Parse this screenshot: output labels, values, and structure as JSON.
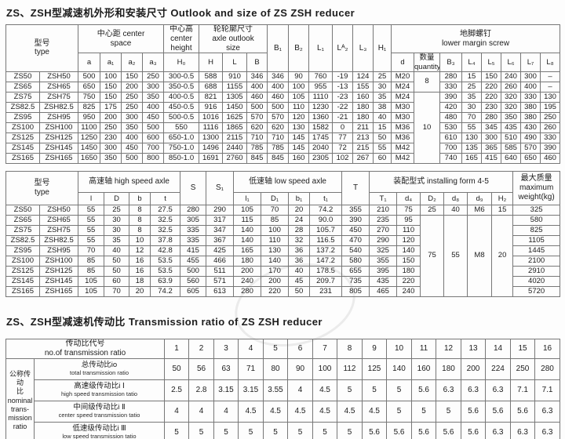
{
  "titles": {
    "size": "ZS、ZSH型减速机外形和安装尺寸  Outlook and size of ZS ZSH reducer",
    "ratio": "ZS、ZSH型减速机传动比  Transmission ratio of ZS ZSH reducer"
  },
  "size_table": {
    "header_rows": [
      [
        [
          "型号\ntype",
          2,
          2
        ],
        [
          "中心距 center\nspace",
          4,
          1
        ],
        [
          "中心高\ncenter\nheight",
          1,
          1
        ],
        [
          "轮轮廓尺寸\naxle outlook\nsize",
          3,
          1
        ],
        [
          "B₁",
          1,
          2
        ],
        [
          "B₂",
          1,
          2
        ],
        [
          "L₁",
          1,
          2
        ],
        [
          "Lᴬ₂",
          1,
          2
        ],
        [
          "L₃",
          1,
          2
        ],
        [
          "H₁",
          1,
          2
        ],
        [
          "地脚螺钉\nlower margin screw",
          8,
          1
        ]
      ],
      [
        [
          "a",
          1,
          1
        ],
        [
          "a₁",
          1,
          1
        ],
        [
          "a₂",
          1,
          1
        ],
        [
          "a₃",
          1,
          1
        ],
        [
          "H₀",
          1,
          1
        ],
        [
          "H",
          1,
          1
        ],
        [
          "L",
          1,
          1
        ],
        [
          "B",
          1,
          1
        ],
        [
          "d",
          1,
          1
        ],
        [
          "数量\nquantity",
          1,
          1
        ],
        [
          "B₃",
          1,
          1
        ],
        [
          "L₄",
          1,
          1
        ],
        [
          "L₅",
          1,
          1
        ],
        [
          "L₆",
          1,
          1
        ],
        [
          "L₇",
          1,
          1
        ],
        [
          "L₈",
          1,
          1
        ]
      ]
    ],
    "quantity_merges": [
      {
        "at": 0,
        "span": 2,
        "value": "8"
      },
      {
        "at": 2,
        "span": 7,
        "value": "10"
      }
    ],
    "rows": [
      [
        "ZS50",
        "ZSH50",
        "500",
        "100",
        "150",
        "250",
        "300-0.5",
        "588",
        "910",
        "346",
        "346",
        "90",
        "760",
        "-19",
        "124",
        "25",
        "M20",
        "280",
        "15",
        "150",
        "240",
        "300",
        "–"
      ],
      [
        "ZS65",
        "ZSH65",
        "650",
        "150",
        "200",
        "300",
        "350-0.5",
        "688",
        "1155",
        "400",
        "400",
        "100",
        "955",
        "-13",
        "155",
        "30",
        "M24",
        "330",
        "25",
        "220",
        "260",
        "400",
        "–"
      ],
      [
        "ZS75",
        "ZSH75",
        "750",
        "150",
        "250",
        "350",
        "400-0.5",
        "821",
        "1305",
        "460",
        "460",
        "105",
        "1110",
        "-23",
        "160",
        "35",
        "M24",
        "390",
        "35",
        "220",
        "320",
        "330",
        "130"
      ],
      [
        "ZS82.5",
        "ZSH82.5",
        "825",
        "175",
        "250",
        "400",
        "450-0.5",
        "916",
        "1450",
        "500",
        "500",
        "110",
        "1230",
        "-22",
        "180",
        "38",
        "M30",
        "420",
        "30",
        "230",
        "320",
        "380",
        "195"
      ],
      [
        "ZS95",
        "ZSH95",
        "950",
        "200",
        "300",
        "450",
        "500-0.5",
        "1016",
        "1625",
        "570",
        "570",
        "120",
        "1360",
        "-21",
        "180",
        "40",
        "M30",
        "480",
        "70",
        "280",
        "350",
        "380",
        "250"
      ],
      [
        "ZS100",
        "ZSH100",
        "1100",
        "250",
        "350",
        "500",
        "550",
        "1116",
        "1865",
        "620",
        "620",
        "130",
        "1582",
        "0",
        "211",
        "15",
        "M36",
        "530",
        "55",
        "345",
        "435",
        "430",
        "260"
      ],
      [
        "ZS125",
        "ZSH125",
        "1250",
        "230",
        "400",
        "600",
        "650-1.0",
        "1300",
        "2115",
        "710",
        "710",
        "145",
        "1745",
        "77",
        "213",
        "50",
        "M36",
        "610",
        "130",
        "300",
        "510",
        "490",
        "330"
      ],
      [
        "ZS145",
        "ZSH145",
        "1450",
        "300",
        "450",
        "700",
        "750-1.0",
        "1496",
        "2440",
        "785",
        "785",
        "145",
        "2040",
        "72",
        "215",
        "55",
        "M42",
        "700",
        "135",
        "365",
        "585",
        "570",
        "390"
      ],
      [
        "ZS165",
        "ZSH165",
        "1650",
        "350",
        "500",
        "800",
        "850-1.0",
        "1691",
        "2760",
        "845",
        "845",
        "160",
        "2305",
        "102",
        "267",
        "60",
        "M42",
        "740",
        "165",
        "415",
        "640",
        "650",
        "460"
      ]
    ]
  },
  "axle_table": {
    "header_rows": [
      [
        [
          "型号\ntype",
          2,
          2
        ],
        [
          "高速轴 high speed axle",
          4,
          1
        ],
        [
          "S",
          1,
          2
        ],
        [
          "S₁",
          1,
          2
        ],
        [
          "低速轴 low speed axle",
          4,
          1
        ],
        [
          "T",
          1,
          2
        ],
        [
          "装配型式 installing form 4-5",
          6,
          1
        ],
        [
          "最大质量\nmaximum\nweight(kg)",
          1,
          2
        ]
      ],
      [
        [
          "l",
          1,
          1
        ],
        [
          "D",
          1,
          1
        ],
        [
          "b",
          1,
          1
        ],
        [
          "t",
          1,
          1
        ],
        [
          "l₁",
          1,
          1
        ],
        [
          "D₁",
          1,
          1
        ],
        [
          "b₁",
          1,
          1
        ],
        [
          "t₁",
          1,
          1
        ],
        [
          "T₁",
          1,
          1
        ],
        [
          "d₄",
          1,
          1
        ],
        [
          "D₂",
          1,
          1
        ],
        [
          "d₈",
          1,
          1
        ],
        [
          "d₉",
          1,
          1
        ],
        [
          "H₂",
          1,
          1
        ]
      ]
    ],
    "form_first_row": [
      "25",
      "40",
      "M6",
      "15"
    ],
    "form_merged": [
      "75",
      "55",
      "M8",
      "20"
    ],
    "rows": [
      [
        "ZS50",
        "ZSH50",
        "55",
        "25",
        "8",
        "27.5",
        "280",
        "290",
        "105",
        "70",
        "20",
        "74.2",
        "355",
        "210",
        "75",
        "325"
      ],
      [
        "ZS65",
        "ZSH65",
        "55",
        "30",
        "8",
        "32.5",
        "305",
        "317",
        "115",
        "85",
        "24",
        "90.0",
        "390",
        "235",
        "95",
        "580"
      ],
      [
        "ZS75",
        "ZSH75",
        "55",
        "30",
        "8",
        "32.5",
        "335",
        "347",
        "140",
        "100",
        "28",
        "105.7",
        "450",
        "270",
        "110",
        "825"
      ],
      [
        "ZS82.5",
        "ZSH82.5",
        "55",
        "35",
        "10",
        "37.8",
        "335",
        "367",
        "140",
        "110",
        "32",
        "116.5",
        "470",
        "290",
        "120",
        "1105"
      ],
      [
        "ZS95",
        "ZSH95",
        "70",
        "40",
        "12",
        "42.8",
        "415",
        "425",
        "165",
        "130",
        "36",
        "137.2",
        "540",
        "325",
        "140",
        "1445"
      ],
      [
        "ZS100",
        "ZSH100",
        "85",
        "50",
        "16",
        "53.5",
        "455",
        "466",
        "180",
        "140",
        "36",
        "147.2",
        "580",
        "355",
        "150",
        "2100"
      ],
      [
        "ZS125",
        "ZSH125",
        "85",
        "50",
        "16",
        "53.5",
        "500",
        "511",
        "200",
        "170",
        "40",
        "178.5",
        "655",
        "395",
        "180",
        "2910"
      ],
      [
        "ZS145",
        "ZSH145",
        "105",
        "60",
        "18",
        "63.9",
        "560",
        "571",
        "240",
        "200",
        "45",
        "209.7",
        "735",
        "435",
        "220",
        "4020"
      ],
      [
        "ZS165",
        "ZSH165",
        "105",
        "70",
        "20",
        "74.2",
        "605",
        "613",
        "280",
        "220",
        "50",
        "231",
        "805",
        "465",
        "240",
        "5720"
      ]
    ]
  },
  "ratio_table": {
    "corner_label": "传动比代号\nno.of transmission ratio",
    "numbers": [
      "1",
      "2",
      "3",
      "4",
      "5",
      "6",
      "7",
      "8",
      "9",
      "10",
      "11",
      "12",
      "13",
      "14",
      "15",
      "16"
    ],
    "stub_label": "公称传动\n比\nnominal\ntrans-\nmission\nratio",
    "rows": [
      {
        "zh": "总传动比io",
        "en": "total transmission ratio",
        "values": [
          "50",
          "56",
          "63",
          "71",
          "80",
          "90",
          "100",
          "112",
          "125",
          "140",
          "160",
          "180",
          "200",
          "224",
          "250",
          "280"
        ]
      },
      {
        "zh": "高速级传动比i Ⅰ",
        "en": "high speed transmission tatio",
        "values": [
          "2.5",
          "2.8",
          "3.15",
          "3.15",
          "3.55",
          "4",
          "4.5",
          "5",
          "5",
          "5",
          "5.6",
          "6.3",
          "6.3",
          "6.3",
          "7.1",
          "7.1"
        ]
      },
      {
        "zh": "中间级传动比i Ⅱ",
        "en": "center speed transmission tatio",
        "values": [
          "4",
          "4",
          "4",
          "4.5",
          "4.5",
          "4.5",
          "4.5",
          "4.5",
          "4.5",
          "5",
          "5",
          "5",
          "5.6",
          "5.6",
          "5.6",
          "6.3"
        ]
      },
      {
        "zh": "低速级传动比i Ⅲ",
        "en": "low speed transmission tatio",
        "values": [
          "5",
          "5",
          "5",
          "5",
          "5",
          "5",
          "5",
          "5",
          "5.6",
          "5.6",
          "5.6",
          "5.6",
          "5.6",
          "6.3",
          "6.3",
          "6.3"
        ]
      }
    ]
  }
}
